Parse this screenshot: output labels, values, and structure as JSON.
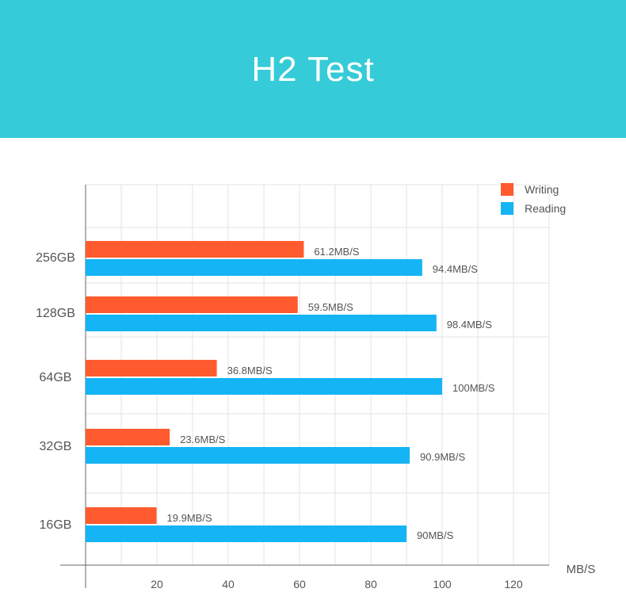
{
  "banner": {
    "title": "H2 Test"
  },
  "colors": {
    "banner": "#35cbd8",
    "writing": "#ff5b2e",
    "reading": "#14b4f5",
    "grid": "#e3e3e3",
    "axis": "#666666",
    "text": "#555555"
  },
  "chart_data": {
    "type": "bar",
    "orientation": "horizontal",
    "title": "H2 Test",
    "xlabel": "MB/S",
    "ylabel": "",
    "xlim": [
      0,
      130
    ],
    "xticks": [
      20,
      40,
      60,
      80,
      100,
      120
    ],
    "grid": true,
    "legend_position": "top-right",
    "categories": [
      "256GB",
      "128GB",
      "64GB",
      "32GB",
      "16GB"
    ],
    "series": [
      {
        "name": "Writing",
        "color": "#ff5b2e",
        "values": [
          61.2,
          59.5,
          36.8,
          23.6,
          19.9
        ],
        "labels": [
          "61.2MB/S",
          "59.5MB/S",
          "36.8MB/S",
          "23.6MB/S",
          "19.9MB/S"
        ]
      },
      {
        "name": "Reading",
        "color": "#14b4f5",
        "values": [
          94.4,
          98.4,
          100,
          90.9,
          90
        ],
        "labels": [
          "94.4MB/S",
          "98.4MB/S",
          "100MB/S",
          "90.9MB/S",
          "90MB/S"
        ]
      }
    ]
  }
}
